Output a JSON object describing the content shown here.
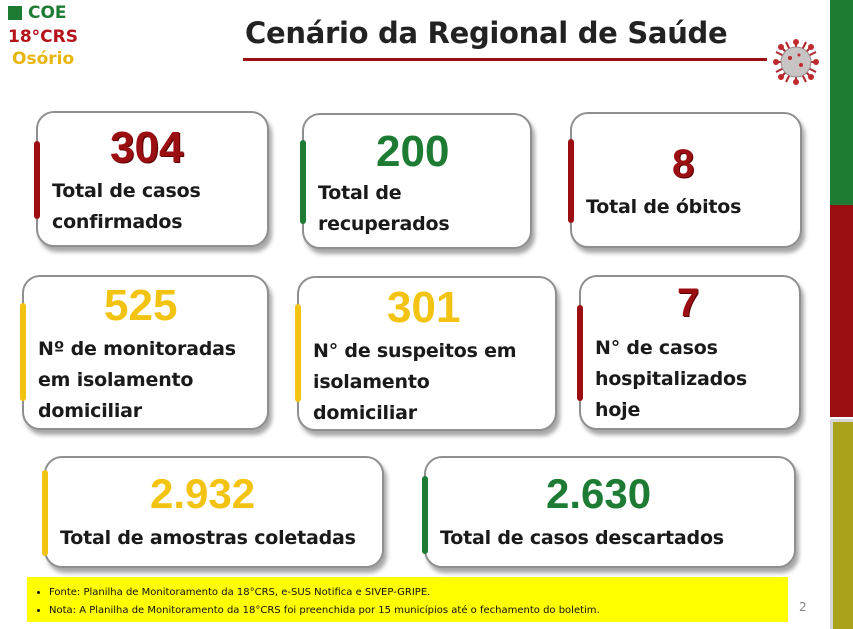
{
  "logo": {
    "line1": "COE",
    "line2": "18°CRS",
    "line3": "Osório"
  },
  "title": "Cenário da Regional de Saúde",
  "cards": [
    {
      "value": "304",
      "label_line1": "Total de casos",
      "label_line2": "confirmados",
      "color": "#9b0e12"
    },
    {
      "value": "200",
      "label_line1": "Total de",
      "label_line2": "recuperados",
      "color": "#1e7b34"
    },
    {
      "value": "8",
      "label_line1": "Total de óbitos",
      "color": "#9b0e12"
    },
    {
      "value": "525",
      "label_line1": "Nº de monitoradas",
      "label_line2": "em isolamento",
      "label_line3": "domiciliar",
      "color": "#f2c310"
    },
    {
      "value": "301",
      "label_line1": "N° de suspeitos em",
      "label_line2": "isolamento",
      "label_line3": "domiciliar",
      "color": "#f2c310"
    },
    {
      "value": "7",
      "label_line1": "N° de casos",
      "label_line2": "hospitalizados",
      "label_line3": "hoje",
      "color": "#9b0e12"
    },
    {
      "value": "2.932",
      "label_line1": "Total de amostras coletadas",
      "color": "#f2c310"
    },
    {
      "value": "2.630",
      "label_line1": "Total de casos descartados",
      "color": "#1e7b34"
    }
  ],
  "notes": [
    "Fonte: Planilha de Monitoramento da 18°CRS, e-SUS Notifica e SIVEP-GRIPE.",
    "Nota: A Planilha de Monitoramento  da 18°CRS foi preenchida por 15 municípios até o fechamento do boletim."
  ],
  "page_number": "2"
}
